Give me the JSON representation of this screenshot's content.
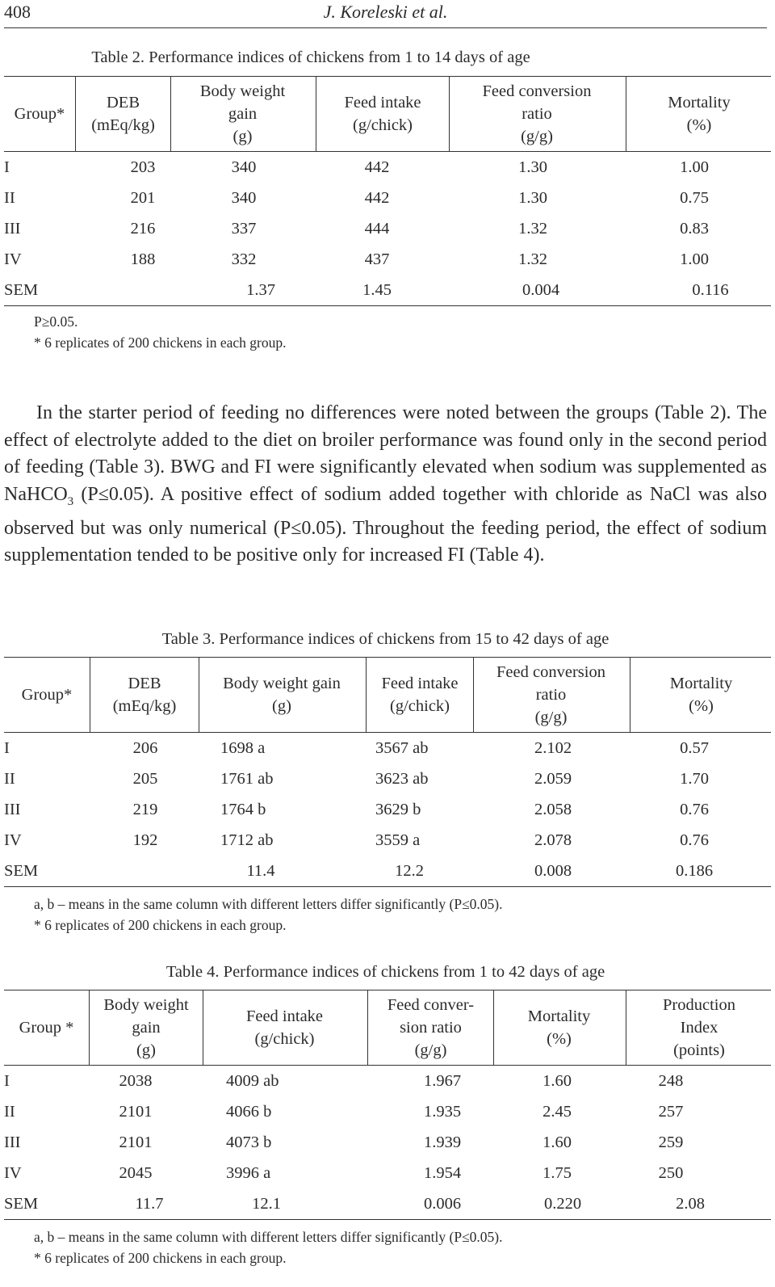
{
  "header": {
    "page_number": "408",
    "running_head": "J. Koreleski et al."
  },
  "table2": {
    "caption": "Table 2. Performance indices of chickens from 1 to 14 days of age",
    "headers": [
      [
        "Group*"
      ],
      [
        "DEB",
        "(mEq/kg)"
      ],
      [
        "Body weight",
        "gain",
        "(g)"
      ],
      [
        "Feed intake",
        "(g/chick)"
      ],
      [
        "Feed conversion",
        "ratio",
        "(g/g)"
      ],
      [
        "Mortality",
        "(%)"
      ]
    ],
    "rows": [
      [
        "I",
        "203",
        "340",
        "442",
        "1.30",
        "1.00"
      ],
      [
        "II",
        "201",
        "340",
        "442",
        "1.30",
        "0.75"
      ],
      [
        "III",
        "216",
        "337",
        "444",
        "1.32",
        "0.83"
      ],
      [
        "IV",
        "188",
        "332",
        "437",
        "1.32",
        "1.00"
      ],
      [
        "SEM",
        "",
        "1.37",
        "1.45",
        "0.004",
        "0.116"
      ]
    ],
    "footnotes": [
      "P≥0.05.",
      "* 6 replicates of 200 chickens in each group."
    ]
  },
  "paragraph": {
    "line1": "In the starter period of feeding no differences were noted between the groups (Table 2). The effect of electrolyte added to the diet on broiler performance was found only in the second period of feeding (Table 3). BWG and FI were significantly elevated when sodium was supplemented as NaHCO",
    "sub": "3",
    "line2": " (P≤0.05). A positive effect of sodium added together with chloride as NaCl was also observed but was only numerical (P≤0.05). Throughout the feeding period, the effect of sodium supplementation tended to be positive only for increased FI (Table 4)."
  },
  "table3": {
    "caption": "Table 3. Performance indices of chickens from 15 to 42 days of age",
    "headers": [
      [
        "Group*"
      ],
      [
        "DEB",
        "(mEq/kg)"
      ],
      [
        "Body weight gain",
        "(g)"
      ],
      [
        "Feed intake",
        "(g/chick)"
      ],
      [
        "Feed conversion",
        "ratio",
        "(g/g)"
      ],
      [
        "Mortality",
        "(%)"
      ]
    ],
    "rows": [
      [
        "I",
        "206",
        "1698 a",
        "3567 ab",
        "2.102",
        "0.57"
      ],
      [
        "II",
        "205",
        "1761 ab",
        "3623 ab",
        "2.059",
        "1.70"
      ],
      [
        "III",
        "219",
        "1764 b",
        "3629 b",
        "2.058",
        "0.76"
      ],
      [
        "IV",
        "192",
        "1712 ab",
        "3559 a",
        "2.078",
        "0.76"
      ],
      [
        "SEM",
        "",
        "11.4",
        "12.2",
        "0.008",
        "0.186"
      ]
    ],
    "footnotes": [
      "a, b – means in the same column with different letters differ significantly (P≤0.05).",
      "* 6 replicates of 200 chickens in each group."
    ]
  },
  "table4": {
    "caption": "Table 4. Performance indices of chickens from 1 to 42 days of age",
    "headers": [
      [
        "Group *"
      ],
      [
        "Body weight",
        "gain",
        "(g)"
      ],
      [
        "Feed intake",
        "(g/chick)"
      ],
      [
        "Feed conver-",
        "sion ratio",
        "(g/g)"
      ],
      [
        "Mortality",
        "(%)"
      ],
      [
        "Production",
        "Index",
        "(points)"
      ]
    ],
    "rows": [
      [
        "I",
        "2038",
        "4009 ab",
        "1.967",
        "1.60",
        "248"
      ],
      [
        "II",
        "2101",
        "4066 b",
        "1.935",
        "2.45",
        "257"
      ],
      [
        "III",
        "2101",
        "4073 b",
        "1.939",
        "1.60",
        "259"
      ],
      [
        "IV",
        "2045",
        "3996 a",
        "1.954",
        "1.75",
        "250"
      ],
      [
        "SEM",
        "11.7",
        "12.1",
        "0.006",
        "0.220",
        "2.08"
      ]
    ],
    "footnotes": [
      "a, b – means in the same column with different letters differ significantly (P≤0.05).",
      "* 6 replicates of 200 chickens in each group."
    ]
  }
}
